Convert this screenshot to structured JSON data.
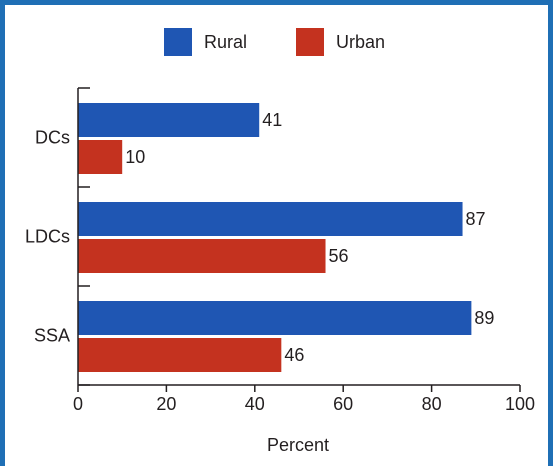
{
  "chart_data": {
    "type": "bar",
    "orientation": "horizontal",
    "title": "",
    "xlabel": "Percent",
    "ylabel": "",
    "categories": [
      "DCs",
      "LDCs",
      "SSA"
    ],
    "series": [
      {
        "name": "Rural",
        "values": [
          41,
          87,
          89
        ],
        "color": "#1f56b3"
      },
      {
        "name": "Urban",
        "values": [
          10,
          56,
          46
        ],
        "color": "#c4321f"
      }
    ],
    "xlim": [
      0,
      100
    ],
    "xticks": [
      0,
      20,
      40,
      60,
      80,
      100
    ],
    "grid": false,
    "legend": "top"
  }
}
